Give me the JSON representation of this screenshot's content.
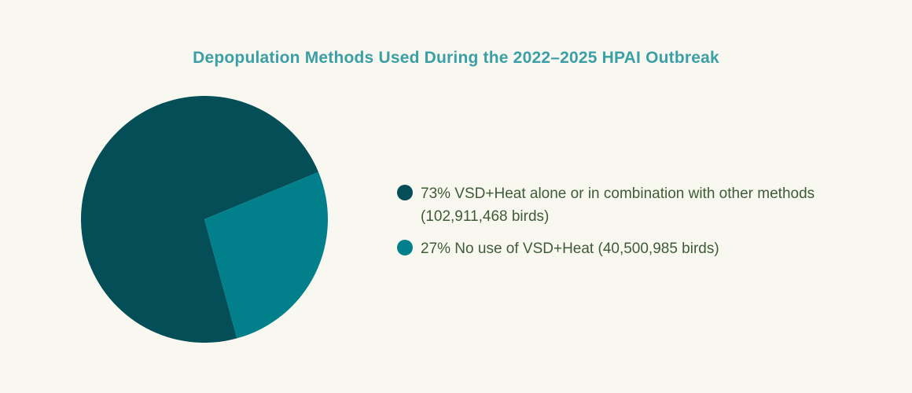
{
  "chart_data": {
    "type": "pie",
    "title": "Depopulation Methods Used During the 2022–2025 HPAI Outbreak",
    "title_color": "#3a9fa6",
    "legend_placement": "right",
    "slices": [
      {
        "label": "73% VSD+Heat alone or in combination with other methods (102,911,468 birds)",
        "percent": 73,
        "value": 102911468,
        "color": "#034e57"
      },
      {
        "label": "27% No use of VSD+Heat (40,500,985 birds)",
        "percent": 27,
        "value": 40500985,
        "color": "#01808b"
      }
    ]
  }
}
